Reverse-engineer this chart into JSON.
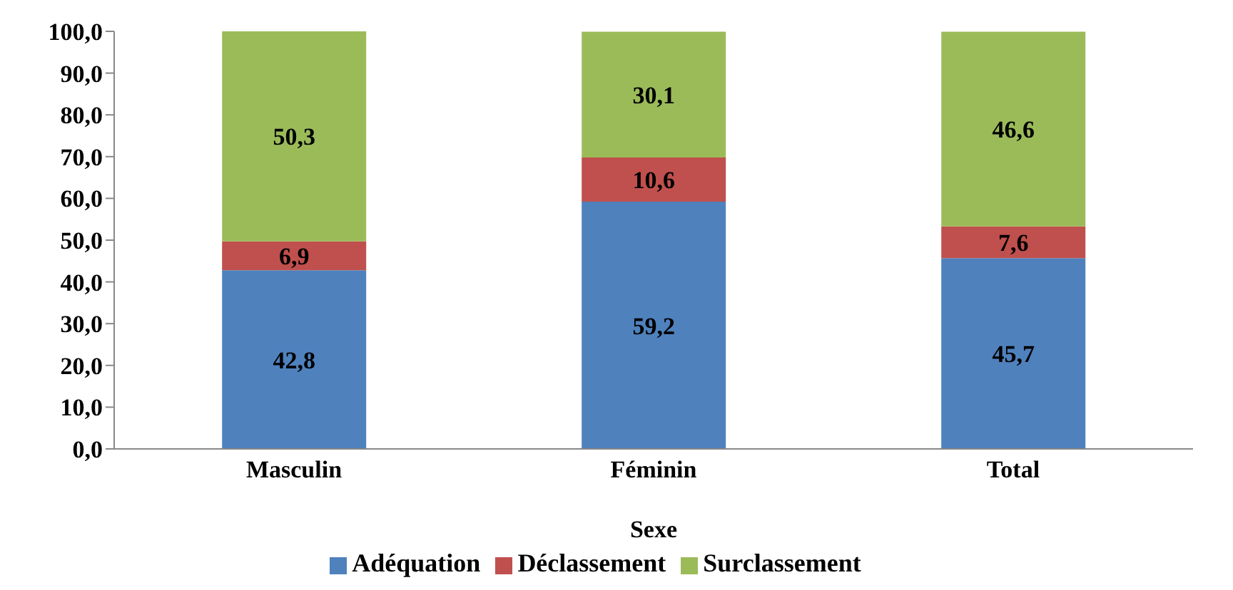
{
  "chart_data": {
    "type": "bar",
    "stacked": true,
    "xlabel": "Sexe",
    "categories": [
      "Masculin",
      "Féminin",
      "Total"
    ],
    "series": [
      {
        "name": "Adéquation",
        "color": "#4f81bd",
        "values": [
          42.8,
          59.2,
          45.7
        ],
        "value_labels": [
          "42,8",
          "59,2",
          "45,7"
        ]
      },
      {
        "name": "Déclassement",
        "color": "#c0504d",
        "values": [
          6.9,
          10.6,
          7.6
        ],
        "value_labels": [
          "6,9",
          "10,6",
          "7,6"
        ]
      },
      {
        "name": "Surclassement",
        "color": "#9bbb59",
        "values": [
          50.3,
          30.1,
          46.6
        ],
        "value_labels": [
          "50,3",
          "30,1",
          "46,6"
        ]
      }
    ],
    "ylim": [
      0,
      100
    ],
    "yticks": [
      {
        "value": 0,
        "label": "0,0"
      },
      {
        "value": 10,
        "label": "10,0"
      },
      {
        "value": 20,
        "label": "20,0"
      },
      {
        "value": 30,
        "label": "30,0"
      },
      {
        "value": 40,
        "label": "40,0"
      },
      {
        "value": 50,
        "label": "50,0"
      },
      {
        "value": 60,
        "label": "60,0"
      },
      {
        "value": 70,
        "label": "70,0"
      },
      {
        "value": 80,
        "label": "80,0"
      },
      {
        "value": 90,
        "label": "90,0"
      },
      {
        "value": 100,
        "label": "100,0"
      }
    ],
    "grid": false,
    "legend": "bottom"
  }
}
